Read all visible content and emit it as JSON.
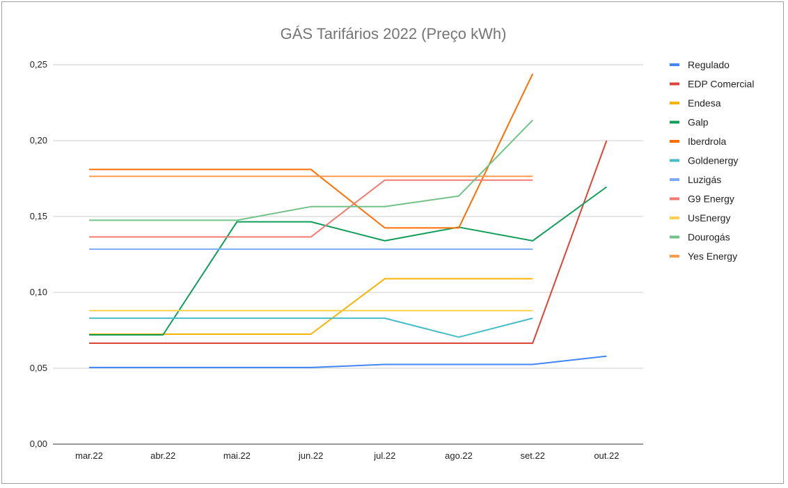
{
  "chart_data": {
    "type": "line",
    "title": "GÁS Tarifários 2022 (Preço kWh)",
    "xlabel": "",
    "ylabel": "",
    "categories": [
      "mar.22",
      "abr.22",
      "mai.22",
      "jun.22",
      "jul.22",
      "ago.22",
      "set.22",
      "out.22"
    ],
    "ylim": [
      0,
      0.25
    ],
    "yticks": [
      0,
      0.05,
      0.1,
      0.15,
      0.2,
      0.25
    ],
    "ytick_labels": [
      "0,00",
      "0,05",
      "0,10",
      "0,15",
      "0,20",
      "0,25"
    ],
    "grid": true,
    "legend_position": "right",
    "series": [
      {
        "name": "Regulado",
        "color": "#4285F4",
        "values": [
          0.0505,
          0.0505,
          0.0505,
          0.0505,
          0.0525,
          0.0525,
          0.0525,
          0.058
        ]
      },
      {
        "name": "EDP Comercial",
        "color": "#DB4437",
        "values": [
          0.0665,
          0.0665,
          0.0665,
          0.0665,
          0.0665,
          0.0665,
          0.0665,
          0.2
        ]
      },
      {
        "name": "Endesa",
        "color": "#F4B400",
        "values": [
          0.0725,
          0.0725,
          0.0725,
          0.0725,
          0.109,
          0.109,
          0.109,
          null
        ]
      },
      {
        "name": "Galp",
        "color": "#0F9D58",
        "values": [
          0.072,
          0.072,
          0.1465,
          0.1465,
          0.134,
          0.143,
          0.134,
          0.1695
        ]
      },
      {
        "name": "Iberdrola",
        "color": "#FF6D00",
        "values": [
          0.181,
          0.181,
          0.181,
          0.181,
          0.1425,
          0.1425,
          0.244,
          null
        ]
      },
      {
        "name": "Goldenergy",
        "color": "#46BDC6",
        "values": [
          0.083,
          0.083,
          0.083,
          0.083,
          0.083,
          0.0705,
          0.083,
          null
        ]
      },
      {
        "name": "Luzigás",
        "color": "#7BAAF7",
        "values": [
          0.1285,
          0.1285,
          0.1285,
          0.1285,
          0.1285,
          0.1285,
          0.1285,
          null
        ]
      },
      {
        "name": "G9 Energy",
        "color": "#F07B72",
        "values": [
          0.1365,
          0.1365,
          0.1365,
          0.1365,
          0.174,
          0.174,
          0.174,
          null
        ]
      },
      {
        "name": "UsEnergy",
        "color": "#FCD04F",
        "values": [
          0.088,
          0.088,
          0.088,
          0.088,
          0.088,
          0.088,
          0.088,
          null
        ]
      },
      {
        "name": "Dourogás",
        "color": "#71C287",
        "values": [
          0.1475,
          0.1475,
          0.1475,
          0.1565,
          0.1565,
          0.1635,
          0.2135,
          null
        ]
      },
      {
        "name": "Yes Energy",
        "color": "#FF994D",
        "values": [
          0.1765,
          0.1765,
          0.1765,
          0.1765,
          0.1765,
          0.1765,
          0.1765,
          null
        ]
      }
    ]
  }
}
